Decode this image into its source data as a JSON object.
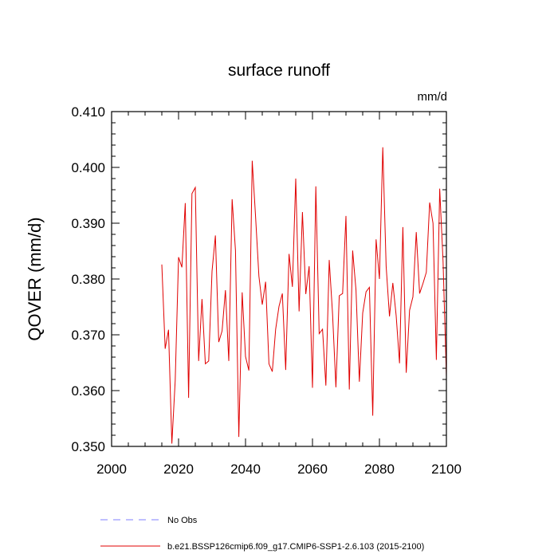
{
  "chart_data": {
    "type": "line",
    "title": "surface runoff",
    "units": "mm/d",
    "ylabel": "QOVER  (mm/d)",
    "xlabel": "",
    "xlim": [
      2000,
      2100
    ],
    "ylim": [
      0.35,
      0.41
    ],
    "x_ticks": [
      2000,
      2020,
      2040,
      2060,
      2080,
      2100
    ],
    "x_tick_labels": [
      "2000",
      "2020",
      "2040",
      "2060",
      "2080",
      "2100"
    ],
    "y_ticks": [
      0.35,
      0.36,
      0.37,
      0.38,
      0.39,
      0.4,
      0.41
    ],
    "y_tick_labels": [
      "0.350",
      "0.360",
      "0.370",
      "0.380",
      "0.390",
      "0.400",
      "0.410"
    ],
    "series": [
      {
        "name": "b.e21.BSSP126cmip6.f09_g17.CMIP6-SSP1-2.6.103 (2015-2100)",
        "color": "#e00000",
        "style": "solid",
        "x": [
          2015,
          2016,
          2017,
          2018,
          2019,
          2020,
          2021,
          2022,
          2023,
          2024,
          2025,
          2026,
          2027,
          2028,
          2029,
          2030,
          2031,
          2032,
          2033,
          2034,
          2035,
          2036,
          2037,
          2038,
          2039,
          2040,
          2041,
          2042,
          2043,
          2044,
          2045,
          2046,
          2047,
          2048,
          2049,
          2050,
          2051,
          2052,
          2053,
          2054,
          2055,
          2056,
          2057,
          2058,
          2059,
          2060,
          2061,
          2062,
          2063,
          2064,
          2065,
          2066,
          2067,
          2068,
          2069,
          2070,
          2071,
          2072,
          2073,
          2074,
          2075,
          2076,
          2077,
          2078,
          2079,
          2080,
          2081,
          2082,
          2083,
          2084,
          2085,
          2086,
          2087,
          2088,
          2089,
          2090,
          2091,
          2092,
          2093,
          2094,
          2095,
          2096,
          2097,
          2098,
          2099,
          2100
        ],
        "values": [
          0.3826,
          0.3675,
          0.3709,
          0.3505,
          0.3618,
          0.3839,
          0.3821,
          0.3936,
          0.3587,
          0.3953,
          0.3964,
          0.3653,
          0.3764,
          0.3648,
          0.3653,
          0.3814,
          0.3878,
          0.3687,
          0.3707,
          0.378,
          0.3653,
          0.3943,
          0.3851,
          0.3517,
          0.3776,
          0.3661,
          0.3636,
          0.4012,
          0.3912,
          0.3805,
          0.3754,
          0.3795,
          0.3648,
          0.3634,
          0.371,
          0.3751,
          0.3774,
          0.3637,
          0.3845,
          0.3786,
          0.398,
          0.3742,
          0.392,
          0.3773,
          0.3823,
          0.3605,
          0.3966,
          0.3702,
          0.371,
          0.3609,
          0.3834,
          0.3737,
          0.3606,
          0.377,
          0.3774,
          0.3913,
          0.3602,
          0.3851,
          0.378,
          0.3616,
          0.3739,
          0.3777,
          0.3785,
          0.3555,
          0.3871,
          0.38,
          0.4036,
          0.3823,
          0.3733,
          0.3793,
          0.3734,
          0.3649,
          0.3893,
          0.3632,
          0.3744,
          0.3768,
          0.3884,
          0.3774,
          0.3792,
          0.3812,
          0.3937,
          0.39,
          0.3655,
          0.3962,
          0.3832,
          0.3625
        ]
      },
      {
        "name": "No Obs",
        "color": "#7f7fff",
        "style": "dashed",
        "x": [],
        "values": []
      }
    ],
    "legend_position": "bottom-left",
    "grid": false
  }
}
